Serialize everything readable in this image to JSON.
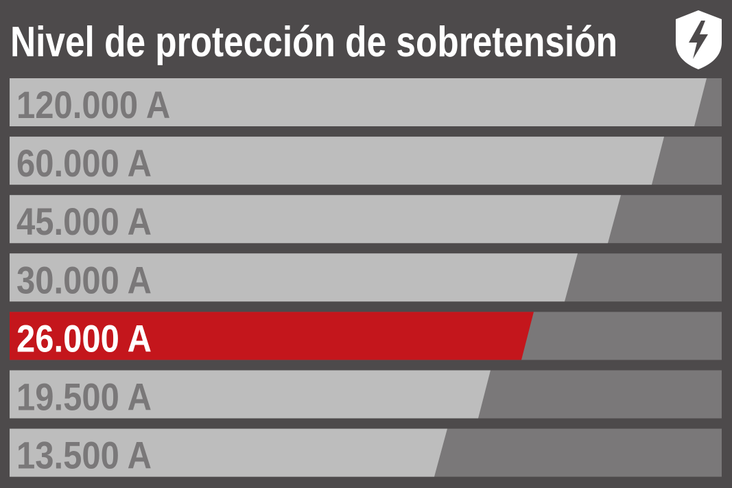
{
  "title": "Nivel de protección de sobretensión",
  "items": [
    "120.000 A",
    "60.000 A",
    "45.000 A",
    "30.000 A",
    "26.000 A",
    "19.500 A",
    "13.500 A"
  ]
}
